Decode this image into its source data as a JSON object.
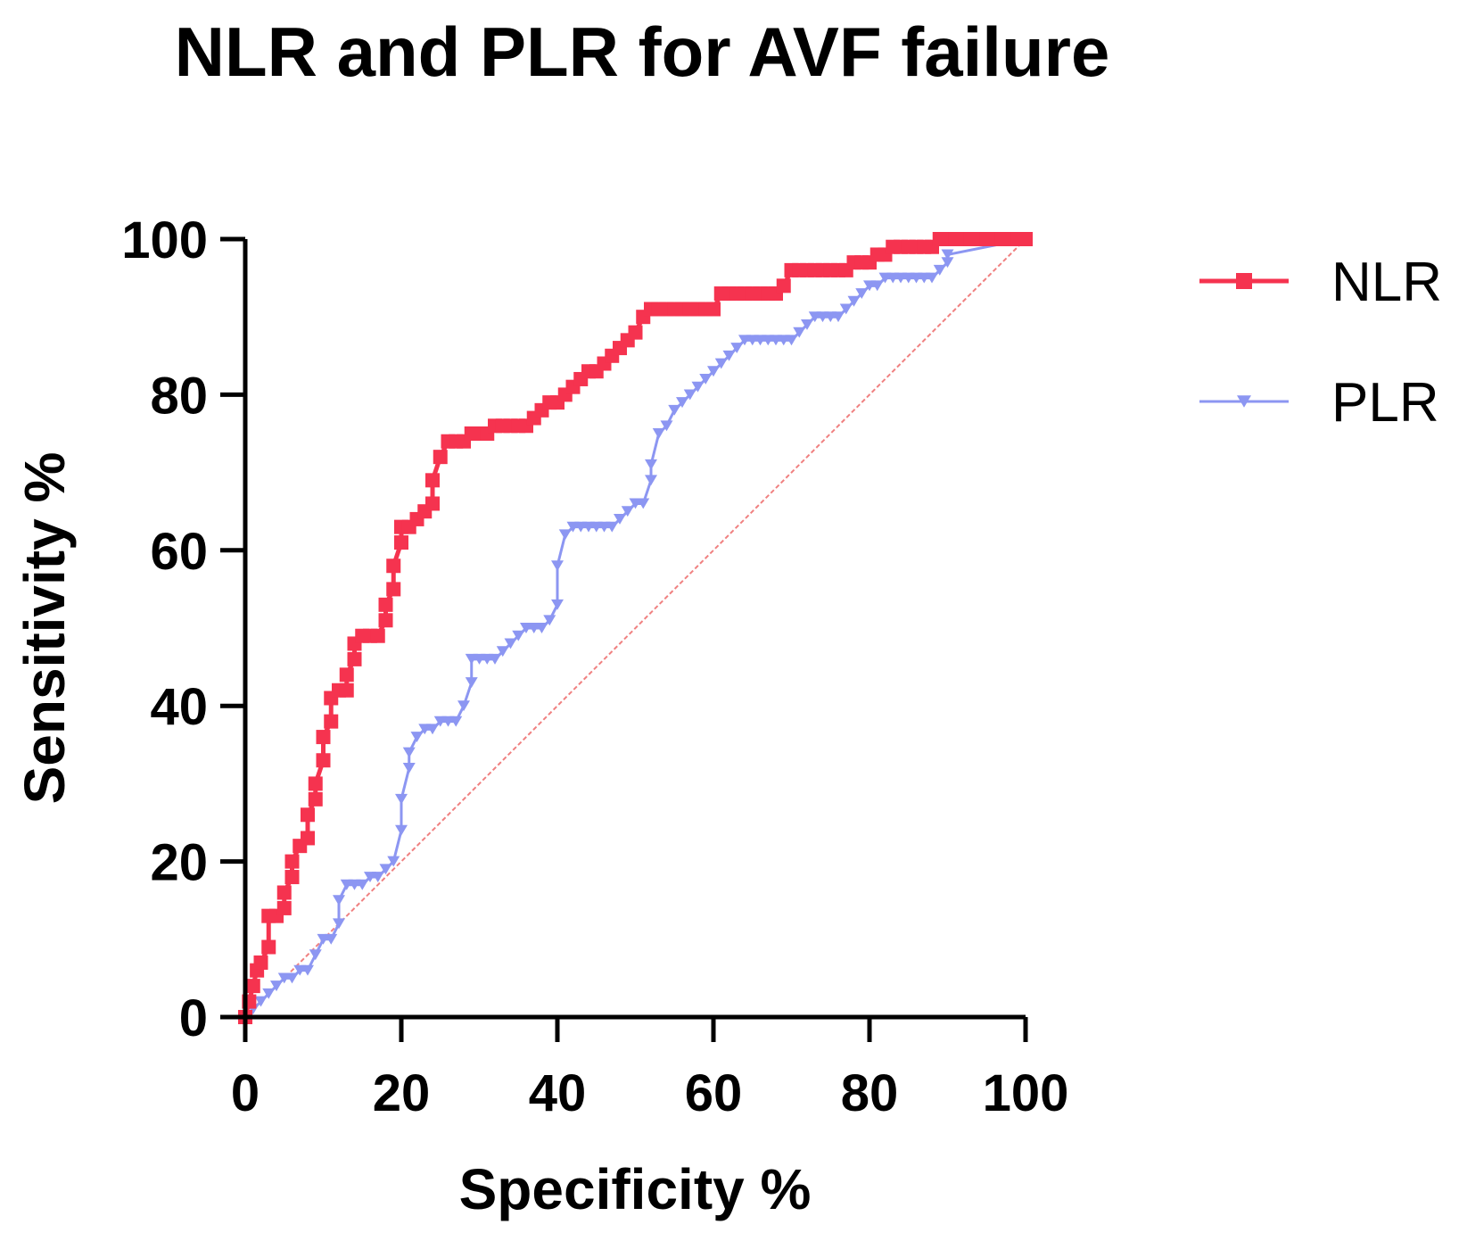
{
  "chart_data": {
    "type": "line",
    "title": "NLR and PLR for AVF failure",
    "xlabel": "Specificity %",
    "ylabel": "Sensitivity %",
    "xlim": [
      0,
      100
    ],
    "ylim": [
      0,
      100
    ],
    "xticks": [
      "0",
      "20",
      "40",
      "60",
      "80",
      "100"
    ],
    "yticks": [
      "0",
      "20",
      "40",
      "60",
      "80",
      "100"
    ],
    "grid": false,
    "legend_position": "right",
    "reference_line": {
      "name": "Reference",
      "color": "#F08080",
      "x": [
        0,
        100
      ],
      "y": [
        0,
        100
      ]
    },
    "series": [
      {
        "name": "NLR",
        "color": "#F5334F",
        "marker": "square",
        "x": [
          0,
          0.5,
          1,
          1.5,
          2,
          3,
          3,
          4,
          5,
          5,
          6,
          6,
          7,
          8,
          8,
          9,
          9,
          10,
          10,
          11,
          11,
          12,
          13,
          13,
          14,
          14,
          15,
          16,
          17,
          18,
          18,
          19,
          19,
          20,
          20,
          21,
          22,
          23,
          24,
          24,
          25,
          26,
          27,
          28,
          29,
          30,
          31,
          32,
          33,
          34,
          35,
          36,
          37,
          38,
          39,
          40,
          41,
          42,
          43,
          44,
          45,
          46,
          47,
          48,
          49,
          50,
          51,
          52,
          53,
          54,
          55,
          56,
          57,
          58,
          59,
          60,
          61,
          62,
          63,
          64,
          65,
          66,
          67,
          68,
          69,
          70,
          71,
          72,
          73,
          74,
          75,
          76,
          77,
          78,
          79,
          80,
          81,
          82,
          83,
          84,
          85,
          86,
          87,
          88,
          89,
          90,
          91,
          92,
          93,
          94,
          95,
          96,
          97,
          98,
          99,
          100
        ],
        "y": [
          0,
          2,
          4,
          6,
          7,
          9,
          13,
          13,
          14,
          16,
          18,
          20,
          22,
          23,
          26,
          28,
          30,
          33,
          36,
          38,
          41,
          42,
          42,
          44,
          46,
          48,
          49,
          49,
          49,
          51,
          53,
          55,
          58,
          61,
          63,
          63,
          64,
          65,
          66,
          69,
          72,
          74,
          74,
          74,
          75,
          75,
          75,
          76,
          76,
          76,
          76,
          76,
          77,
          78,
          79,
          79,
          80,
          81,
          82,
          83,
          83,
          84,
          85,
          86,
          87,
          88,
          90,
          91,
          91,
          91,
          91,
          91,
          91,
          91,
          91,
          91,
          93,
          93,
          93,
          93,
          93,
          93,
          93,
          93,
          94,
          96,
          96,
          96,
          96,
          96,
          96,
          96,
          96,
          97,
          97,
          97,
          98,
          98,
          99,
          99,
          99,
          99,
          99,
          99,
          100,
          100,
          100,
          100,
          100,
          100,
          100,
          100,
          100,
          100,
          100,
          100
        ]
      },
      {
        "name": "PLR",
        "color": "#8C96F2",
        "marker": "triangle-down",
        "x": [
          0,
          1,
          2,
          3,
          4,
          5,
          6,
          7,
          8,
          9,
          10,
          11,
          12,
          12,
          13,
          14,
          15,
          16,
          17,
          18,
          19,
          20,
          20,
          21,
          21,
          22,
          23,
          24,
          25,
          26,
          27,
          28,
          29,
          29,
          30,
          31,
          32,
          33,
          34,
          35,
          36,
          37,
          38,
          39,
          40,
          40,
          41,
          42,
          43,
          44,
          45,
          46,
          47,
          48,
          49,
          50,
          51,
          52,
          52,
          53,
          54,
          55,
          56,
          57,
          58,
          59,
          60,
          61,
          62,
          63,
          64,
          65,
          66,
          67,
          68,
          69,
          70,
          71,
          72,
          73,
          74,
          75,
          76,
          77,
          78,
          79,
          80,
          81,
          82,
          83,
          84,
          85,
          86,
          87,
          88,
          89,
          90,
          90,
          100
        ],
        "y": [
          0,
          1,
          2,
          3,
          4,
          5,
          5,
          6,
          6,
          8,
          10,
          10,
          12,
          15,
          17,
          17,
          17,
          18,
          18,
          19,
          20,
          24,
          28,
          32,
          34,
          36,
          37,
          37,
          38,
          38,
          38,
          40,
          43,
          46,
          46,
          46,
          46,
          47,
          48,
          49,
          50,
          50,
          50,
          51,
          53,
          58,
          62,
          63,
          63,
          63,
          63,
          63,
          63,
          64,
          65,
          66,
          66,
          69,
          71,
          75,
          76,
          78,
          79,
          80,
          81,
          82,
          83,
          84,
          85,
          86,
          87,
          87,
          87,
          87,
          87,
          87,
          87,
          88,
          89,
          90,
          90,
          90,
          90,
          91,
          92,
          93,
          94,
          94,
          95,
          95,
          95,
          95,
          95,
          95,
          95,
          96,
          97,
          98,
          100
        ]
      }
    ]
  }
}
